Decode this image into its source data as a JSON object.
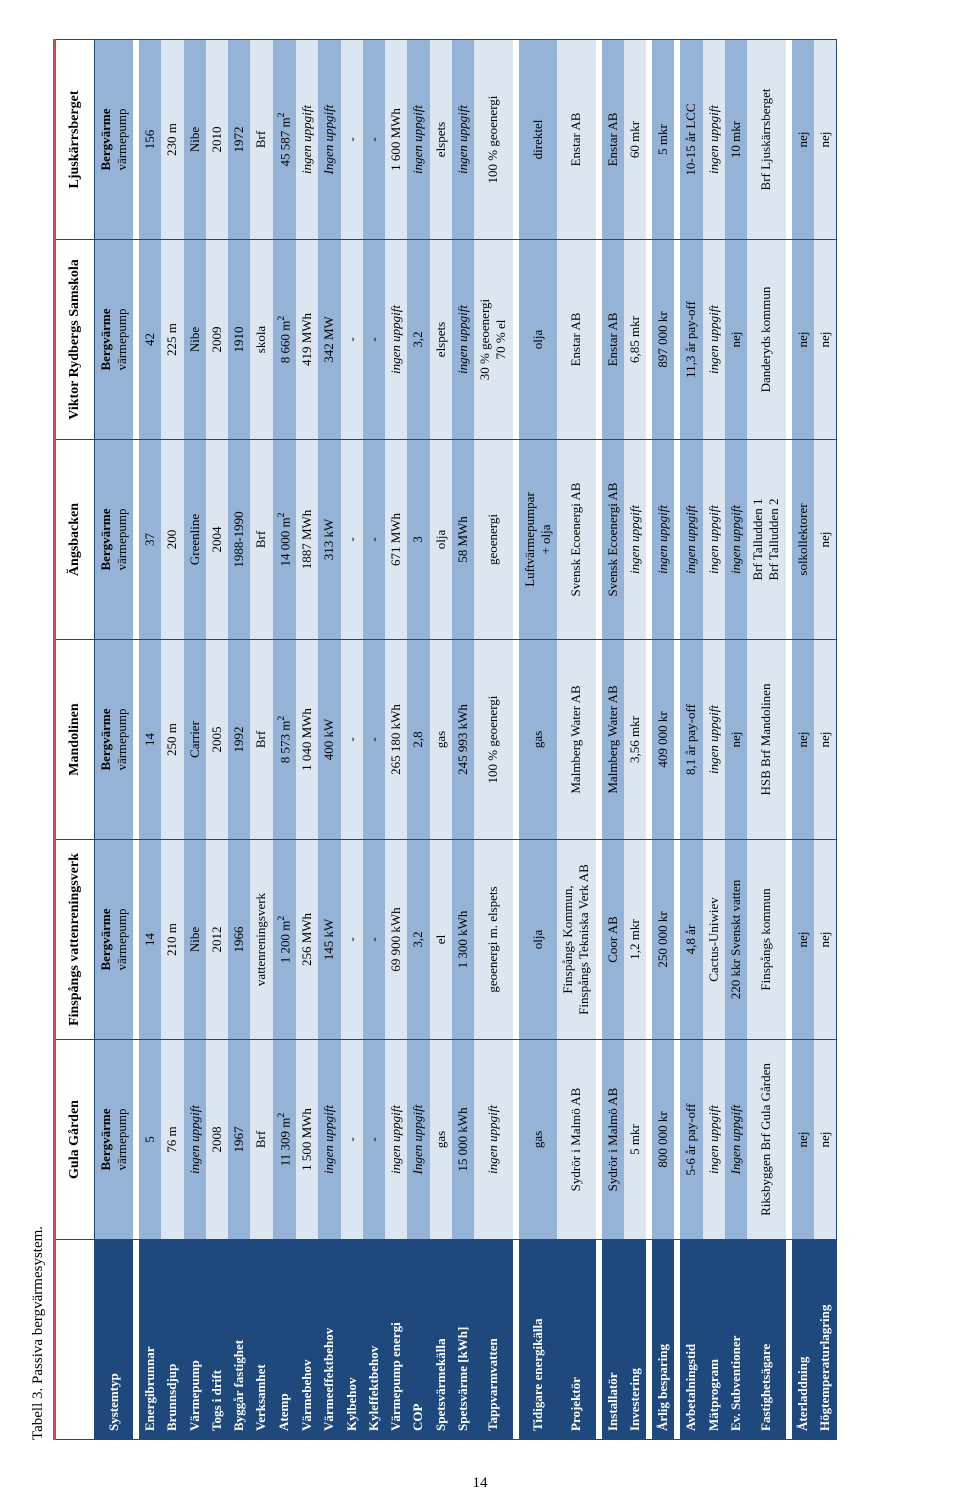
{
  "caption": "Tabell 3. Passiva bergvärmesystem.",
  "page_number": "14",
  "colors": {
    "header_bg": "#1f497d",
    "band_dark": "#95b3d7",
    "band_light": "#dce6f1",
    "top_border": "#c0504d"
  },
  "columns": [
    "Gula Gården",
    "Finspångs vattenreningsverk",
    "Mandolinen",
    "Ängsbacken",
    "Viktor Rydbergs Samskola",
    "Ljuskärrsberget"
  ],
  "rows": [
    {
      "label": "Systemtyp",
      "band": "dark",
      "cells": [
        "<b>Bergvärme</b><br>värmepump",
        "<b>Bergvärme</b><br>värmepump",
        "<b>Bergvärme</b><br>värmepump",
        "<b>Bergvärme</b><br>värmepump",
        "<b>Bergvärme</b><br>värmepump",
        "<b>Bergvärme</b><br>värmepump"
      ]
    },
    {
      "spacer": true
    },
    {
      "label": "Energibrunnar",
      "band": "dark",
      "cells": [
        "5",
        "14",
        "14",
        "37",
        "42",
        "156"
      ]
    },
    {
      "label": "Brunnsdjup",
      "band": "light",
      "cells": [
        "76 m",
        "210 m",
        "250 m",
        "200",
        "225 m",
        "230 m"
      ]
    },
    {
      "label": "Värmepump",
      "band": "dark",
      "cells": [
        "<i>ingen uppgift</i>",
        "Nibe",
        "Carrier",
        "Greenline",
        "Nibe",
        "Nibe"
      ]
    },
    {
      "label": "Togs i drift",
      "band": "light",
      "cells": [
        "2008",
        "2012",
        "2005",
        "2004",
        "2009",
        "2010"
      ]
    },
    {
      "label": "Byggår fastighet",
      "band": "dark",
      "cells": [
        "1967",
        "1966",
        "1992",
        "1988-1990",
        "1910",
        "1972"
      ]
    },
    {
      "label": "Verksamhet",
      "band": "light",
      "cells": [
        "Brf",
        "vattenreningsverk",
        "Brf",
        "Brf",
        "skola",
        "Brf"
      ]
    },
    {
      "label": "Atemp",
      "band": "dark",
      "cells": [
        "11 309 m<sup>2</sup>",
        "1 200 m<sup>2</sup>",
        "8 573 m<sup>2</sup>",
        "14 000 m<sup>2</sup>",
        "8 660 m<sup>2</sup>",
        "45 587 m<sup>2</sup>"
      ]
    },
    {
      "label": "Värmebehov",
      "band": "light",
      "cells": [
        "1 500 MWh",
        "256 MWh",
        "1 040 MWh",
        "1887 MWh",
        "419 MWh",
        "<i>ingen uppgift</i>"
      ]
    },
    {
      "label": "Värmeeffektbehov",
      "band": "dark",
      "cells": [
        "<i>ingen uppgift</i>",
        "145 kW",
        "400 kW",
        "313 kW",
        "342 MW",
        "<i>Ingen uppgift</i>"
      ]
    },
    {
      "label": "Kylbehov",
      "band": "light",
      "cells": [
        "-",
        "-",
        "-",
        "-",
        "-",
        "-"
      ]
    },
    {
      "label": "Kyleffektbehov",
      "band": "dark",
      "cells": [
        "-",
        "-",
        "-",
        "-",
        "-",
        "-"
      ]
    },
    {
      "label": "Värmepump energi",
      "band": "light",
      "cells": [
        "<i>ingen uppgift</i>",
        "69 900 kWh",
        "265 180 kWh",
        "671 MWh",
        "<i>ingen uppgift</i>",
        "1 600 MWh"
      ]
    },
    {
      "label": "COP",
      "band": "dark",
      "cells": [
        "<i>Ingen uppgift</i>",
        "3,2",
        "2,8",
        "3",
        "3,2",
        "<i>ingen uppgift</i>"
      ]
    },
    {
      "label": "Spetsvärmekälla",
      "band": "light",
      "cells": [
        "gas",
        "el",
        "gas",
        "olja",
        "elspets",
        "elspets"
      ]
    },
    {
      "label": "Spetsvärme [kWh]",
      "band": "dark",
      "cells": [
        "15 000 kWh",
        "1 300 kWh",
        "245 993 kWh",
        "58 MWh",
        "<i>ingen uppgift</i>",
        "<i>ingen uppgift</i>"
      ]
    },
    {
      "label": "Tappvarmvatten",
      "band": "light",
      "cells": [
        "<i>ingen uppgift</i>",
        "geoenergi m. elspets",
        "100 % geoenergi",
        "geoenergi",
        "30 % geoenergi<br>70 % el",
        "100 % geoenergi"
      ]
    },
    {
      "spacer": true
    },
    {
      "label": "Tidigare energikälla",
      "band": "dark",
      "cells": [
        "gas",
        "olja",
        "gas",
        "Luftvärmepumpar<br>+ olja",
        "olja",
        "direktel"
      ]
    },
    {
      "label": "Projektör",
      "band": "light",
      "cells": [
        "Sydrör i Malmö AB",
        "Finspångs Kommun,<br>Finspångs Tekniska Verk AB",
        "Malmberg Water AB",
        "Svensk Ecoenergi AB",
        "Enstar AB",
        "Enstar AB"
      ]
    },
    {
      "spacer": true
    },
    {
      "label": "Installatör",
      "band": "dark",
      "cells": [
        "Sydrör i Malmö AB",
        "Coor AB",
        "Malmberg Water AB",
        "Svensk Ecoenergi AB",
        "Enstar AB",
        "Enstar AB"
      ]
    },
    {
      "label": "Investering",
      "band": "light",
      "cells": [
        "5 mkr",
        "1,2 mkr",
        "3,56 mkr",
        "<i>ingen uppgift</i>",
        "6,85 mkr",
        "60 mkr"
      ]
    },
    {
      "spacer": true
    },
    {
      "label": "Årlig besparing",
      "band": "dark",
      "cells": [
        "800 000 kr",
        "250 000 kr",
        "409 000 kr",
        "<i>ingen uppgift</i>",
        "897 000 kr",
        "5 mkr"
      ]
    },
    {
      "spacer": true
    },
    {
      "label": "Avbetalningstid",
      "band": "dark",
      "cells": [
        "5-6 år pay-off",
        "4,8 år",
        "8,1 år pay-off",
        "<i>ingen uppgift</i>",
        "11,3 år pay-off",
        "10-15 år LCC"
      ]
    },
    {
      "label": "Mätprogram",
      "band": "light",
      "cells": [
        "<i>ingen uppgift</i>",
        "Cactus-Uniwiev",
        "<i>ingen uppgift</i>",
        "<i>ingen uppgift</i>",
        "<i>ingen uppgift</i>",
        "<i>ingen uppgift</i>"
      ]
    },
    {
      "label": "Ev. Subventioner",
      "band": "dark",
      "cells": [
        "<i>Ingen uppgift</i>",
        "220 kkr Svenskt vatten",
        "nej",
        "<i>ingen uppgift</i>",
        "nej",
        "10 mkr"
      ]
    },
    {
      "label": "Fastighetsägare",
      "band": "light",
      "cells": [
        "Riksbyggen Brf Gula Gården",
        "Finspångs kommun",
        "HSB Brf Mandolinen",
        "Brf Talludden 1<br>Brf Talludden 2",
        "Danderyds kommun",
        "Brf Ljuskärrsberget"
      ]
    },
    {
      "spacer": true
    },
    {
      "label": "Återladdning",
      "band": "dark",
      "cells": [
        "nej",
        "nej",
        "nej",
        "solkollektorer",
        "nej",
        "nej"
      ]
    },
    {
      "label": "Högtemperaturlagring",
      "band": "light",
      "cells": [
        "nej",
        "nej",
        "nej",
        "nej",
        "nej",
        "nej"
      ]
    }
  ]
}
